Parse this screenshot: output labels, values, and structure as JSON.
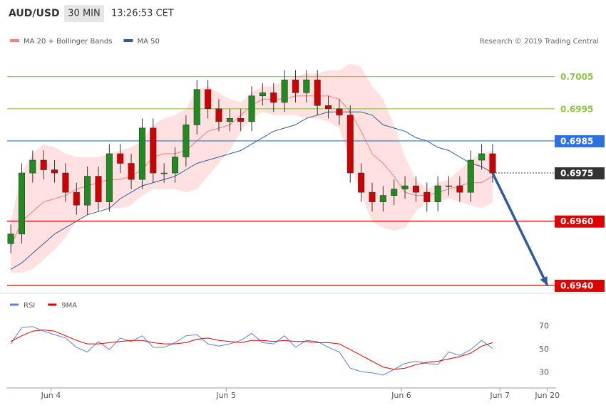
{
  "chart_data": [
    {
      "type": "candlestick",
      "title": "AUD/USD",
      "timeframe": "30 MIN",
      "time": "13:26:53 CET",
      "source": "Research © 2019 Trading Central",
      "xlim": [
        -1,
        149
      ],
      "ylim": [
        0.6938,
        0.702
      ],
      "x": [
        0,
        3,
        6,
        9,
        12,
        15,
        18,
        21,
        24,
        27,
        30,
        33,
        36,
        39,
        42,
        45,
        48,
        51,
        54,
        57,
        60,
        63,
        66,
        69,
        72,
        75,
        78,
        81,
        84,
        87,
        90,
        93,
        96,
        99,
        102,
        105,
        108,
        111,
        114,
        117,
        120,
        123,
        126,
        129,
        132
      ],
      "open": [
        0.6953,
        0.6956,
        0.6975,
        0.6979,
        0.6976,
        0.6975,
        0.6969,
        0.6965,
        0.6974,
        0.6966,
        0.6981,
        0.6978,
        0.6973,
        0.6989,
        0.6975,
        0.6975,
        0.698,
        0.699,
        0.7001,
        0.6995,
        0.6991,
        0.6992,
        0.6991,
        0.6999,
        0.7,
        0.6997,
        0.7004,
        0.7,
        0.7004,
        0.6996,
        0.6995,
        0.6993,
        0.6975,
        0.6969,
        0.6966,
        0.6968,
        0.697,
        0.6971,
        0.6969,
        0.6966,
        0.6971,
        0.6971,
        0.6969,
        0.6979,
        0.6981
      ],
      "high": [
        0.6959,
        0.6978,
        0.6982,
        0.6982,
        0.6979,
        0.6978,
        0.6972,
        0.6977,
        0.6977,
        0.6984,
        0.6984,
        0.6981,
        0.6992,
        0.6992,
        0.6978,
        0.6983,
        0.6993,
        0.7004,
        0.7004,
        0.6998,
        0.6995,
        0.6995,
        0.7002,
        0.7003,
        0.7003,
        0.7007,
        0.7007,
        0.7007,
        0.7007,
        0.6999,
        0.6998,
        0.6996,
        0.6978,
        0.6972,
        0.6971,
        0.6973,
        0.6974,
        0.6974,
        0.6972,
        0.6974,
        0.6974,
        0.6974,
        0.6982,
        0.6984,
        0.6984
      ],
      "low": [
        0.695,
        0.6953,
        0.6972,
        0.6973,
        0.6972,
        0.6966,
        0.6962,
        0.6962,
        0.6963,
        0.6963,
        0.6975,
        0.697,
        0.697,
        0.6972,
        0.6972,
        0.6972,
        0.6977,
        0.6987,
        0.6992,
        0.6988,
        0.6988,
        0.6988,
        0.6988,
        0.6996,
        0.6994,
        0.6994,
        0.6997,
        0.6997,
        0.6993,
        0.6992,
        0.699,
        0.6972,
        0.6966,
        0.6963,
        0.6963,
        0.6965,
        0.6967,
        0.6966,
        0.6963,
        0.6963,
        0.6968,
        0.6966,
        0.6966,
        0.6976,
        0.6972
      ],
      "close": [
        0.6956,
        0.6975,
        0.6979,
        0.6976,
        0.6975,
        0.6969,
        0.6965,
        0.6974,
        0.6966,
        0.6981,
        0.6978,
        0.6973,
        0.6989,
        0.6975,
        0.6975,
        0.698,
        0.699,
        0.7001,
        0.6995,
        0.6991,
        0.6992,
        0.6991,
        0.6999,
        0.7,
        0.6997,
        0.7004,
        0.7,
        0.7004,
        0.6996,
        0.6995,
        0.6993,
        0.6975,
        0.6969,
        0.6966,
        0.6968,
        0.697,
        0.6971,
        0.6969,
        0.6966,
        0.6971,
        0.6971,
        0.6969,
        0.6979,
        0.6981,
        0.6975
      ],
      "up_color": "#1e8c1e",
      "down_color": "#d00000",
      "series": [
        {
          "name": "MA 20 + Bollinger Bands",
          "color": "#f08080",
          "band_color": "#ffd9d9",
          "values": [
            0.6952,
            0.696,
            0.6963,
            0.6966,
            0.6967,
            0.6968,
            0.697,
            0.6971,
            0.6972,
            0.6973,
            0.6973,
            0.6974,
            0.6976,
            0.698,
            0.6981,
            0.6981,
            0.6982,
            0.6985,
            0.6988,
            0.6989,
            0.699,
            0.6993,
            0.6996,
            0.6998,
            0.6998,
            0.6998,
            0.6999,
            0.6999,
            0.6999,
            0.6999,
            0.6998,
            0.6994,
            0.6988,
            0.6981,
            0.6978,
            0.6974,
            0.6969,
            0.6968,
            0.6968,
            0.6969,
            0.697,
            0.6971,
            0.6972,
            0.6972,
            0.6974
          ],
          "upper": [
            0.696,
            0.6975,
            0.6981,
            0.6984,
            0.6983,
            0.6981,
            0.698,
            0.698,
            0.698,
            0.6981,
            0.6982,
            0.6983,
            0.6985,
            0.699,
            0.6992,
            0.6993,
            0.6995,
            0.7001,
            0.7002,
            0.7,
            0.6998,
            0.6997,
            0.7,
            0.7002,
            0.7002,
            0.7004,
            0.7005,
            0.7006,
            0.7006,
            0.7007,
            0.7007,
            0.7009,
            0.7008,
            0.7002,
            0.6998,
            0.699,
            0.698,
            0.6973,
            0.697,
            0.6972,
            0.6973,
            0.6976,
            0.6979,
            0.6981,
            0.6982
          ],
          "lower": [
            0.6944,
            0.6944,
            0.6945,
            0.6948,
            0.6951,
            0.6955,
            0.696,
            0.6962,
            0.6964,
            0.6964,
            0.6964,
            0.6965,
            0.6968,
            0.697,
            0.697,
            0.697,
            0.6969,
            0.697,
            0.6974,
            0.6978,
            0.6982,
            0.6988,
            0.6992,
            0.6994,
            0.6993,
            0.6993,
            0.6993,
            0.6992,
            0.6992,
            0.6991,
            0.6989,
            0.6978,
            0.6968,
            0.696,
            0.6958,
            0.6957,
            0.6958,
            0.6963,
            0.6966,
            0.6966,
            0.6967,
            0.6966,
            0.6965,
            0.6964,
            0.6966
          ]
        },
        {
          "name": "MA 50",
          "color": "#2e5c99",
          "values": [
            0.6945,
            0.6947,
            0.695,
            0.6953,
            0.6956,
            0.6958,
            0.696,
            0.6962,
            0.6963,
            0.6964,
            0.6967,
            0.6969,
            0.6971,
            0.6972,
            0.6973,
            0.6974,
            0.6976,
            0.6978,
            0.6979,
            0.698,
            0.6981,
            0.6982,
            0.6984,
            0.6986,
            0.6988,
            0.6989,
            0.699,
            0.6992,
            0.6993,
            0.6994,
            0.6994,
            0.6994,
            0.6994,
            0.6993,
            0.699,
            0.6989,
            0.6988,
            0.6986,
            0.6985,
            0.6983,
            0.6982,
            0.698,
            0.6978,
            0.6977,
            0.6975
          ]
        }
      ],
      "levels": [
        {
          "value": 0.7005,
          "color": "#8cc63f",
          "boxed": false,
          "line": "solid"
        },
        {
          "value": 0.6995,
          "color": "#8cc63f",
          "boxed": false,
          "line": "solid"
        },
        {
          "value": 0.6985,
          "color": "#2f6fe0",
          "boxed": true,
          "line": "solid"
        },
        {
          "value": 0.6975,
          "color": "#333333",
          "boxed": true,
          "line": "dotted"
        },
        {
          "value": 0.696,
          "label": "0.6960",
          "color": "#e00000",
          "boxed": true,
          "line": "solid"
        },
        {
          "value": 0.694,
          "label": "0.6940",
          "color": "#e00000",
          "boxed": true,
          "line": "solid"
        }
      ],
      "projection": {
        "color": "#2e5c99",
        "x": [
          132,
          147
        ],
        "values": [
          0.6975,
          0.694
        ]
      }
    },
    {
      "type": "line",
      "xlim": [
        -1,
        149
      ],
      "ylim": [
        20,
        95
      ],
      "yticks": [
        70,
        50,
        30
      ],
      "x": [
        0,
        3,
        6,
        9,
        12,
        15,
        18,
        21,
        24,
        27,
        30,
        33,
        36,
        39,
        42,
        45,
        48,
        51,
        54,
        57,
        60,
        63,
        66,
        69,
        72,
        75,
        78,
        81,
        84,
        87,
        90,
        93,
        96,
        99,
        102,
        105,
        108,
        111,
        114,
        117,
        120,
        123,
        126,
        129,
        132
      ],
      "xticks": [
        {
          "value": 11,
          "label": "Jun 4"
        },
        {
          "value": 59,
          "label": "Jun 5"
        },
        {
          "value": 107,
          "label": "Jun 6"
        },
        {
          "value": 134,
          "label": "Jun 7"
        },
        {
          "value": 147,
          "label": "Jun 20"
        }
      ],
      "series": [
        {
          "name": "RSI",
          "color": "#5b7fdb",
          "values": [
            55,
            69,
            70,
            66,
            63,
            60,
            52,
            48,
            57,
            50,
            60,
            57,
            62,
            52,
            52,
            56,
            62,
            63,
            55,
            53,
            55,
            58,
            64,
            56,
            55,
            62,
            52,
            58,
            57,
            52,
            48,
            34,
            31,
            30,
            28,
            33,
            38,
            40,
            38,
            37,
            48,
            45,
            50,
            58,
            51
          ]
        },
        {
          "name": "9MA",
          "color": "#e00000",
          "values": [
            57,
            62,
            66,
            67,
            66,
            62,
            58,
            55,
            55,
            56,
            57,
            58,
            58,
            56,
            55,
            55,
            56,
            59,
            60,
            58,
            57,
            56,
            58,
            58,
            57,
            58,
            57,
            57,
            56,
            56,
            55,
            50,
            45,
            40,
            35,
            33,
            34,
            37,
            39,
            40,
            42,
            44,
            47,
            53,
            56
          ]
        }
      ]
    }
  ]
}
